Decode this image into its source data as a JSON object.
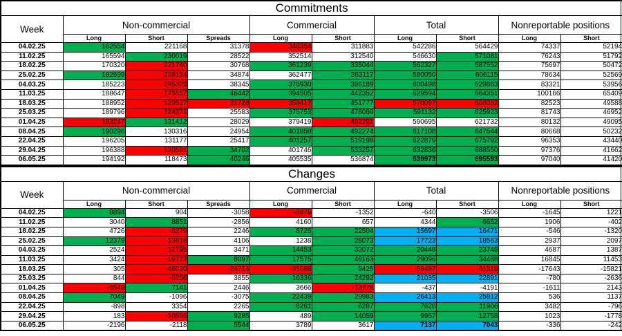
{
  "colors": {
    "g": "#00B050",
    "r": "#FF0000",
    "b": "#00B0F0",
    "border": "#000000",
    "background": "#FFFFFF"
  },
  "tables": [
    {
      "title": "Commitments",
      "week_header": "Week",
      "groups": [
        "Non-commercial",
        "Commercial",
        "Total",
        "Nonreportable positions"
      ],
      "subheaders": [
        "Long",
        "Short",
        "Spreads",
        "Long",
        "Short",
        "Long",
        "Short",
        "Long",
        "Short"
      ],
      "rows": [
        {
          "week": "04.02.25",
          "cells": [
            [
              "162554",
              "g"
            ],
            [
              "221168",
              ""
            ],
            [
              "31378",
              ""
            ],
            [
              "348354",
              "r"
            ],
            [
              "311883",
              ""
            ],
            [
              "542286",
              ""
            ],
            [
              "564429",
              ""
            ],
            [
              "74337",
              ""
            ],
            [
              "52194",
              ""
            ]
          ]
        },
        {
          "week": "11.02.25",
          "cells": [
            [
              "165594",
              ""
            ],
            [
              "230019",
              "g"
            ],
            [
              "28522",
              ""
            ],
            [
              "352514",
              ""
            ],
            [
              "312540",
              ""
            ],
            [
              "546630",
              ""
            ],
            [
              "571081",
              "g"
            ],
            [
              "76243",
              ""
            ],
            [
              "51792",
              ""
            ]
          ]
        },
        {
          "week": "18.02.25",
          "cells": [
            [
              "170320",
              ""
            ],
            [
              "221740",
              "r"
            ],
            [
              "30768",
              ""
            ],
            [
              "361239",
              "g"
            ],
            [
              "335044",
              "g"
            ],
            [
              "562327",
              "g"
            ],
            [
              "587552",
              "g"
            ],
            [
              "75697",
              ""
            ],
            [
              "50472",
              ""
            ]
          ]
        },
        {
          "week": "25.02.25",
          "cells": [
            [
              "182699",
              "g"
            ],
            [
              "208124",
              "r"
            ],
            [
              "34874",
              ""
            ],
            [
              "362477",
              ""
            ],
            [
              "363117",
              "g"
            ],
            [
              "580050",
              "g"
            ],
            [
              "606115",
              "g"
            ],
            [
              "78634",
              ""
            ],
            [
              "52569",
              ""
            ]
          ]
        },
        {
          "week": "04.03.25",
          "cells": [
            [
              "185223",
              ""
            ],
            [
              "195329",
              "r"
            ],
            [
              "38345",
              ""
            ],
            [
              "376930",
              "g"
            ],
            [
              "396189",
              "g"
            ],
            [
              "600498",
              "g"
            ],
            [
              "629863",
              "g"
            ],
            [
              "83321",
              ""
            ],
            [
              "53956",
              ""
            ]
          ]
        },
        {
          "week": "11.03.25",
          "cells": [
            [
              "188647",
              ""
            ],
            [
              "175557",
              "r"
            ],
            [
              "46442",
              "g"
            ],
            [
              "394505",
              "g"
            ],
            [
              "442352",
              "g"
            ],
            [
              "629594",
              "g"
            ],
            [
              "664351",
              "g"
            ],
            [
              "100166",
              ""
            ],
            [
              "65409",
              ""
            ]
          ]
        },
        {
          "week": "18.03.25",
          "cells": [
            [
              "188952",
              ""
            ],
            [
              "129527",
              "r"
            ],
            [
              "21728",
              "r"
            ],
            [
              "359417",
              "r"
            ],
            [
              "451777",
              "g"
            ],
            [
              "570097",
              "r"
            ],
            [
              "603032",
              "r"
            ],
            [
              "82523",
              ""
            ],
            [
              "49588",
              ""
            ]
          ]
        },
        {
          "week": "25.03.25",
          "cells": [
            [
              "189796",
              ""
            ],
            [
              "124271",
              "r"
            ],
            [
              "25583",
              ""
            ],
            [
              "375753",
              "g"
            ],
            [
              "476069",
              "g"
            ],
            [
              "591132",
              "g"
            ],
            [
              "625923",
              "g"
            ],
            [
              "81743",
              ""
            ],
            [
              "46952",
              ""
            ]
          ]
        },
        {
          "week": "01.04.25",
          "cells": [
            [
              "183247",
              "r"
            ],
            [
              "131412",
              "g"
            ],
            [
              "28029",
              ""
            ],
            [
              "379419",
              ""
            ],
            [
              "462291",
              "r"
            ],
            [
              "590695",
              ""
            ],
            [
              "621732",
              ""
            ],
            [
              "80132",
              ""
            ],
            [
              "49095",
              ""
            ]
          ]
        },
        {
          "week": "08.04.25",
          "cells": [
            [
              "190296",
              "g"
            ],
            [
              "130316",
              ""
            ],
            [
              "24954",
              ""
            ],
            [
              "401858",
              "g"
            ],
            [
              "492274",
              "g"
            ],
            [
              "617108",
              "g"
            ],
            [
              "647544",
              "g"
            ],
            [
              "80668",
              ""
            ],
            [
              "50232",
              ""
            ]
          ]
        },
        {
          "week": "22.04.25",
          "cells": [
            [
              "196205",
              ""
            ],
            [
              "131177",
              ""
            ],
            [
              "25417",
              ""
            ],
            [
              "401257",
              "g"
            ],
            [
              "519198",
              "g"
            ],
            [
              "622879",
              "g"
            ],
            [
              "675792",
              "g"
            ],
            [
              "96353",
              ""
            ],
            [
              "43440",
              ""
            ]
          ]
        },
        {
          "week": "29.04.25",
          "cells": [
            [
              "196388",
              ""
            ],
            [
              "120591",
              "r"
            ],
            [
              "34702",
              "g"
            ],
            [
              "401746",
              ""
            ],
            [
              "533257",
              "g"
            ],
            [
              "632836",
              "g"
            ],
            [
              "688550",
              "g"
            ],
            [
              "97376",
              ""
            ],
            [
              "41662",
              ""
            ]
          ]
        },
        {
          "week": "06.05.25",
          "cells": [
            [
              "194192",
              ""
            ],
            [
              "118473",
              ""
            ],
            [
              "40246",
              "g"
            ],
            [
              "405535",
              ""
            ],
            [
              "536874",
              ""
            ],
            [
              "639973",
              "gB"
            ],
            [
              "695593",
              "gB"
            ],
            [
              "97040",
              ""
            ],
            [
              "41420",
              ""
            ]
          ]
        }
      ]
    },
    {
      "title": "Changes",
      "week_header": "Week",
      "groups": [
        "Non-commercial",
        "Commercial",
        "Total",
        "Nonreportable positions"
      ],
      "subheaders": [
        "Long",
        "Short",
        "Spreads",
        "Long",
        "Short",
        "Long",
        "Short",
        "Long",
        "Short"
      ],
      "rows": [
        {
          "week": "04.02.25",
          "cells": [
            [
              "8894",
              "g"
            ],
            [
              "904",
              ""
            ],
            [
              "-3058",
              ""
            ],
            [
              "-6476",
              "r"
            ],
            [
              "-1352",
              ""
            ],
            [
              "-640",
              ""
            ],
            [
              "-3506",
              ""
            ],
            [
              "-1645",
              ""
            ],
            [
              "1221",
              ""
            ]
          ]
        },
        {
          "week": "11.02.25",
          "cells": [
            [
              "3040",
              ""
            ],
            [
              "8851",
              "g"
            ],
            [
              "-2856",
              ""
            ],
            [
              "4160",
              ""
            ],
            [
              "657",
              ""
            ],
            [
              "4344",
              ""
            ],
            [
              "6652",
              "g"
            ],
            [
              "1906",
              ""
            ],
            [
              "-402",
              ""
            ]
          ]
        },
        {
          "week": "18.02.25",
          "cells": [
            [
              "4726",
              ""
            ],
            [
              "-8279",
              "r"
            ],
            [
              "2246",
              ""
            ],
            [
              "8725",
              "g"
            ],
            [
              "22504",
              "g"
            ],
            [
              "15697",
              "b"
            ],
            [
              "16471",
              "b"
            ],
            [
              "-546",
              ""
            ],
            [
              "-1320",
              ""
            ]
          ]
        },
        {
          "week": "25.02.25",
          "cells": [
            [
              "12379",
              "g"
            ],
            [
              "-13616",
              "r"
            ],
            [
              "4106",
              ""
            ],
            [
              "1238",
              ""
            ],
            [
              "28073",
              "g"
            ],
            [
              "17723",
              "b"
            ],
            [
              "18563",
              "b"
            ],
            [
              "2937",
              ""
            ],
            [
              "2097",
              ""
            ]
          ]
        },
        {
          "week": "04.03.25",
          "cells": [
            [
              "2524",
              ""
            ],
            [
              "-12795",
              "r"
            ],
            [
              "3471",
              ""
            ],
            [
              "14453",
              "g"
            ],
            [
              "33072",
              "g"
            ],
            [
              "20448",
              "g"
            ],
            [
              "23748",
              "g"
            ],
            [
              "4687",
              ""
            ],
            [
              "1387",
              ""
            ]
          ]
        },
        {
          "week": "11.03.25",
          "cells": [
            [
              "3424",
              ""
            ],
            [
              "-19772",
              "r"
            ],
            [
              "8097",
              "g"
            ],
            [
              "17575",
              "g"
            ],
            [
              "46163",
              "g"
            ],
            [
              "29096",
              "g"
            ],
            [
              "34488",
              "g"
            ],
            [
              "16845",
              ""
            ],
            [
              "11453",
              ""
            ]
          ]
        },
        {
          "week": "18.03.25",
          "cells": [
            [
              "305",
              ""
            ],
            [
              "-46030",
              "r"
            ],
            [
              "-24714",
              "r"
            ],
            [
              "-35088",
              "r"
            ],
            [
              "9425",
              "g"
            ],
            [
              "-59497",
              "r"
            ],
            [
              "-61319",
              "r"
            ],
            [
              "-17643",
              ""
            ],
            [
              "-15821",
              ""
            ]
          ]
        },
        {
          "week": "25.03.25",
          "cells": [
            [
              "844",
              ""
            ],
            [
              "-5256",
              "r"
            ],
            [
              "3855",
              ""
            ],
            [
              "16336",
              "g"
            ],
            [
              "24292",
              "g"
            ],
            [
              "21035",
              "b"
            ],
            [
              "22891",
              "b"
            ],
            [
              "-780",
              ""
            ],
            [
              "-2636",
              ""
            ]
          ]
        },
        {
          "week": "01.04.25",
          "cells": [
            [
              "-6549",
              "r"
            ],
            [
              "7141",
              "g"
            ],
            [
              "2446",
              ""
            ],
            [
              "3666",
              ""
            ],
            [
              "-13778",
              "r"
            ],
            [
              "-437",
              ""
            ],
            [
              "-4191",
              ""
            ],
            [
              "-1611",
              ""
            ],
            [
              "2143",
              ""
            ]
          ]
        },
        {
          "week": "08.04.25",
          "cells": [
            [
              "7049",
              "g"
            ],
            [
              "-1096",
              ""
            ],
            [
              "-3075",
              ""
            ],
            [
              "22439",
              "g"
            ],
            [
              "29983",
              "g"
            ],
            [
              "26413",
              "b"
            ],
            [
              "25812",
              "b"
            ],
            [
              "536",
              ""
            ],
            [
              "1137",
              ""
            ]
          ]
        },
        {
          "week": "22.04.25",
          "cells": [
            [
              "-898",
              ""
            ],
            [
              "3354",
              ""
            ],
            [
              "2265",
              ""
            ],
            [
              "6261",
              "g"
            ],
            [
              "6287",
              "g"
            ],
            [
              "7628",
              "g"
            ],
            [
              "11906",
              "g"
            ],
            [
              "3482",
              ""
            ],
            [
              "-796",
              ""
            ]
          ]
        },
        {
          "week": "29.04.25",
          "cells": [
            [
              "183",
              ""
            ],
            [
              "-10586",
              "r"
            ],
            [
              "9285",
              "g"
            ],
            [
              "489",
              ""
            ],
            [
              "14059",
              "g"
            ],
            [
              "9957",
              "g"
            ],
            [
              "12758",
              "g"
            ],
            [
              "1023",
              ""
            ],
            [
              "-1778",
              ""
            ]
          ]
        },
        {
          "week": "06.05.25",
          "cells": [
            [
              "-2196",
              ""
            ],
            [
              "-2118",
              ""
            ],
            [
              "5544",
              "g"
            ],
            [
              "3789",
              ""
            ],
            [
              "3617",
              ""
            ],
            [
              "7137",
              "bB"
            ],
            [
              "7043",
              "bB"
            ],
            [
              "-336",
              ""
            ],
            [
              "-242",
              ""
            ]
          ]
        }
      ]
    }
  ]
}
